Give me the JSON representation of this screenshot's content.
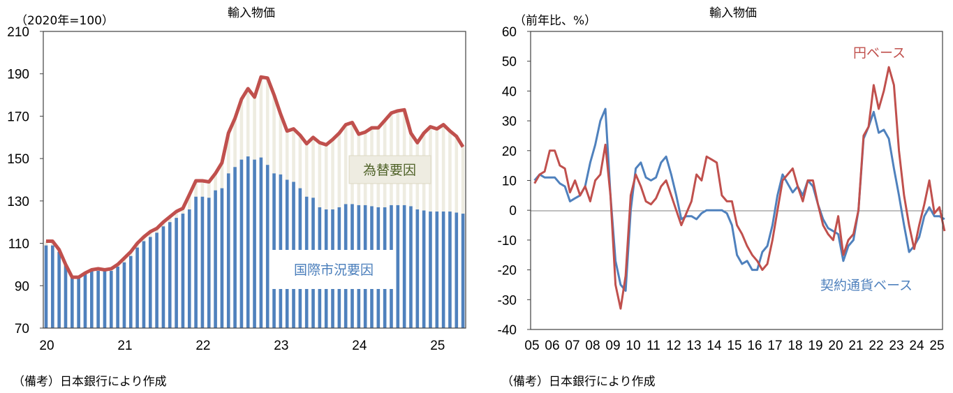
{
  "chart_data": [
    {
      "type": "bar+line",
      "title": "輸入物価",
      "unit_label": "（2020年=100）",
      "ylim": [
        70,
        210
      ],
      "yticks": [
        70,
        90,
        110,
        130,
        150,
        170,
        190,
        210
      ],
      "xticks": [
        "20",
        "21",
        "22",
        "23",
        "24",
        "25"
      ],
      "start": "2020-01",
      "frequency": "monthly",
      "annotations": {
        "exchange": "為替要因",
        "market": "国際市況要因"
      },
      "series": [
        {
          "name": "輸入物価（円ベース）",
          "kind": "line",
          "color": "#c0504d",
          "values": [
            111,
            111,
            107,
            100,
            94,
            94,
            96,
            97.5,
            98,
            97.5,
            98,
            100,
            103,
            106,
            110,
            113,
            115.5,
            117,
            120,
            122.5,
            125,
            126.5,
            133,
            139.5,
            139.5,
            139,
            143,
            148,
            162,
            169,
            178,
            183,
            179,
            188.5,
            188,
            180,
            171,
            163,
            164,
            161,
            157,
            160,
            157.5,
            156.5,
            159,
            162,
            166,
            167,
            161.5,
            162.5,
            164.5,
            164.5,
            168,
            171.5,
            172.5,
            173,
            162,
            157.5,
            162,
            165,
            164,
            166,
            163,
            160.5,
            155.5
          ]
        },
        {
          "name": "国際市況要因",
          "kind": "bar",
          "color": "#4f81bd",
          "values": [
            109,
            109,
            106,
            100,
            94,
            94,
            96,
            97,
            97,
            97,
            97,
            99,
            101,
            104,
            108,
            111,
            113,
            115,
            118,
            120,
            122,
            124,
            126,
            132,
            132,
            131.5,
            135,
            136,
            143,
            146,
            149.5,
            151,
            149.5,
            150.5,
            147,
            143,
            142.5,
            140,
            139,
            136,
            132,
            131.5,
            127,
            126,
            126,
            127,
            128.5,
            128.5,
            128,
            128,
            127.5,
            127,
            127,
            128,
            128,
            128,
            127.5,
            126,
            125.5,
            125,
            125,
            125,
            125,
            124.5,
            124
          ]
        },
        {
          "name": "為替要因",
          "kind": "bar",
          "color": "#eeece1"
        }
      ]
    },
    {
      "type": "line",
      "title": "輸入物価",
      "unit_label": "（前年比、%）",
      "ylim": [
        -40,
        60
      ],
      "yticks": [
        -40,
        -30,
        -20,
        -10,
        0,
        10,
        20,
        30,
        40,
        50,
        60
      ],
      "xticks": [
        "05",
        "06",
        "07",
        "08",
        "09",
        "10",
        "11",
        "12",
        "13",
        "14",
        "15",
        "16",
        "17",
        "18",
        "19",
        "20",
        "21",
        "22",
        "23",
        "24",
        "25"
      ],
      "start": "2005-Q1",
      "frequency": "quarterly",
      "series": [
        {
          "name": "円ベース",
          "color": "#c0504d",
          "values": [
            9,
            12,
            13,
            20,
            20,
            15,
            14,
            6,
            10,
            5,
            8,
            3,
            10,
            12,
            22,
            5,
            -25,
            -33,
            -22,
            5,
            12,
            8,
            3,
            2,
            4,
            8,
            10,
            5,
            0,
            -5,
            -1,
            3,
            12,
            10,
            18,
            17,
            16,
            5,
            3,
            3,
            -5,
            -8,
            -12,
            -15,
            -17,
            -20,
            -18,
            -10,
            0,
            10,
            12,
            14,
            8,
            3,
            10,
            10,
            2,
            -5,
            -8,
            -10,
            -2,
            -15,
            -10,
            -8,
            0,
            25,
            28,
            42,
            34,
            40,
            48,
            42,
            20,
            5,
            -5,
            -13,
            -5,
            2,
            10,
            -1,
            1,
            -7
          ]
        },
        {
          "name": "契約通貨ベース",
          "color": "#4f81bd",
          "values": [
            10,
            12,
            11,
            11,
            11,
            9,
            8,
            3,
            4,
            5,
            8,
            16,
            22,
            30,
            34,
            5,
            -17,
            -25,
            -27,
            0,
            14,
            16,
            11,
            10,
            11,
            16,
            18,
            12,
            5,
            -3,
            -2,
            -2,
            -3,
            -1,
            0,
            0,
            0,
            0,
            -1,
            -5,
            -15,
            -18,
            -17,
            -20,
            -20,
            -14,
            -12,
            -5,
            5,
            12,
            9,
            6,
            8,
            5,
            10,
            8,
            2,
            -3,
            -6,
            -7,
            -8,
            -17,
            -12,
            -10,
            0,
            24,
            28,
            33,
            26,
            27,
            24,
            14,
            5,
            -5,
            -14,
            -12,
            -9,
            -2,
            1,
            -2,
            -2,
            -3
          ]
        }
      ]
    }
  ],
  "notes": [
    "（備考）日本銀行により作成",
    "（備考）日本銀行により作成"
  ]
}
